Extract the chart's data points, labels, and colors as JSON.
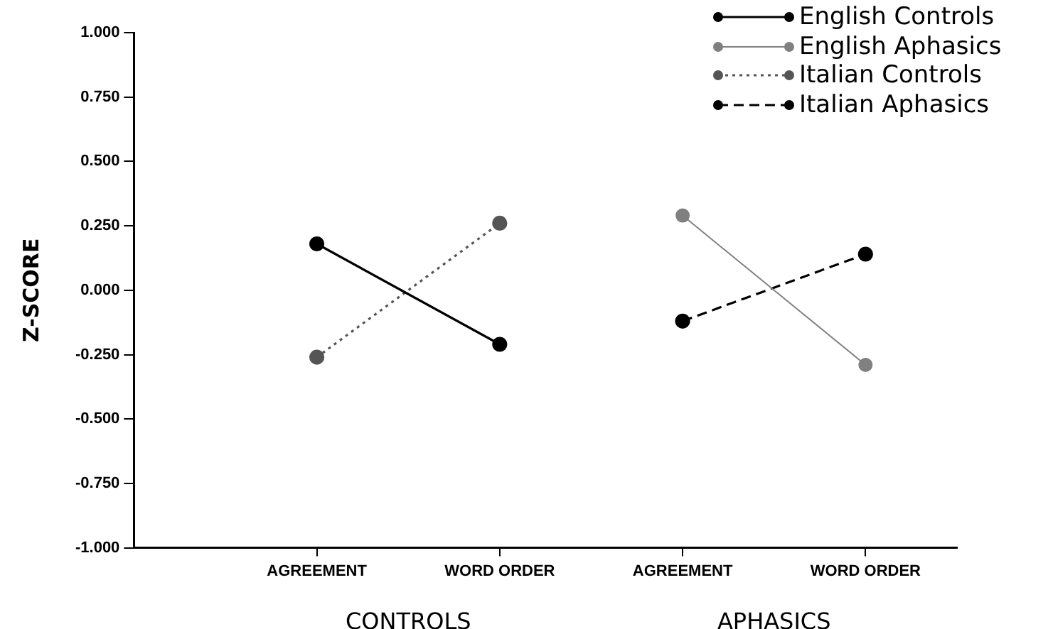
{
  "chart_data": {
    "type": "line",
    "ylabel": "Z-SCORE",
    "categories": [
      null,
      "AGREEMENT",
      "WORD ORDER",
      "AGREEMENT",
      "WORD ORDER"
    ],
    "annotations": [
      "CONTROLS",
      "APHASICS"
    ],
    "ylim": [
      -1,
      1
    ],
    "yticks": [
      {
        "value": -1,
        "label": "-1.000"
      },
      {
        "value": -0.75,
        "label": "-0.750"
      },
      {
        "value": -0.5,
        "label": "-0.500"
      },
      {
        "value": -0.25,
        "label": "-0.250"
      },
      {
        "value": 0,
        "label": "0.000"
      },
      {
        "value": 0.25,
        "label": "0.250"
      },
      {
        "value": 0.5,
        "label": "0.500"
      },
      {
        "value": 0.75,
        "label": "0.750"
      },
      {
        "value": 1,
        "label": "1.000"
      }
    ],
    "marker": "circle",
    "legend": "top right",
    "series": [
      {
        "name": "English Controls",
        "color": "#000000",
        "line_style": "solid",
        "values": [
          null,
          0.18,
          -0.21,
          null,
          null
        ]
      },
      {
        "name": "English Aphasics",
        "color": "#808080",
        "line_style": "solid",
        "values": [
          null,
          null,
          null,
          0.29,
          -0.29
        ]
      },
      {
        "name": "Italian Controls",
        "color": "#555555",
        "line_style": "dotted",
        "values": [
          null,
          -0.26,
          0.26,
          null,
          null
        ]
      },
      {
        "name": "Italian Aphasics",
        "color": "#000000",
        "line_style": "dashed",
        "values": [
          null,
          null,
          null,
          -0.12,
          0.14
        ]
      }
    ]
  }
}
